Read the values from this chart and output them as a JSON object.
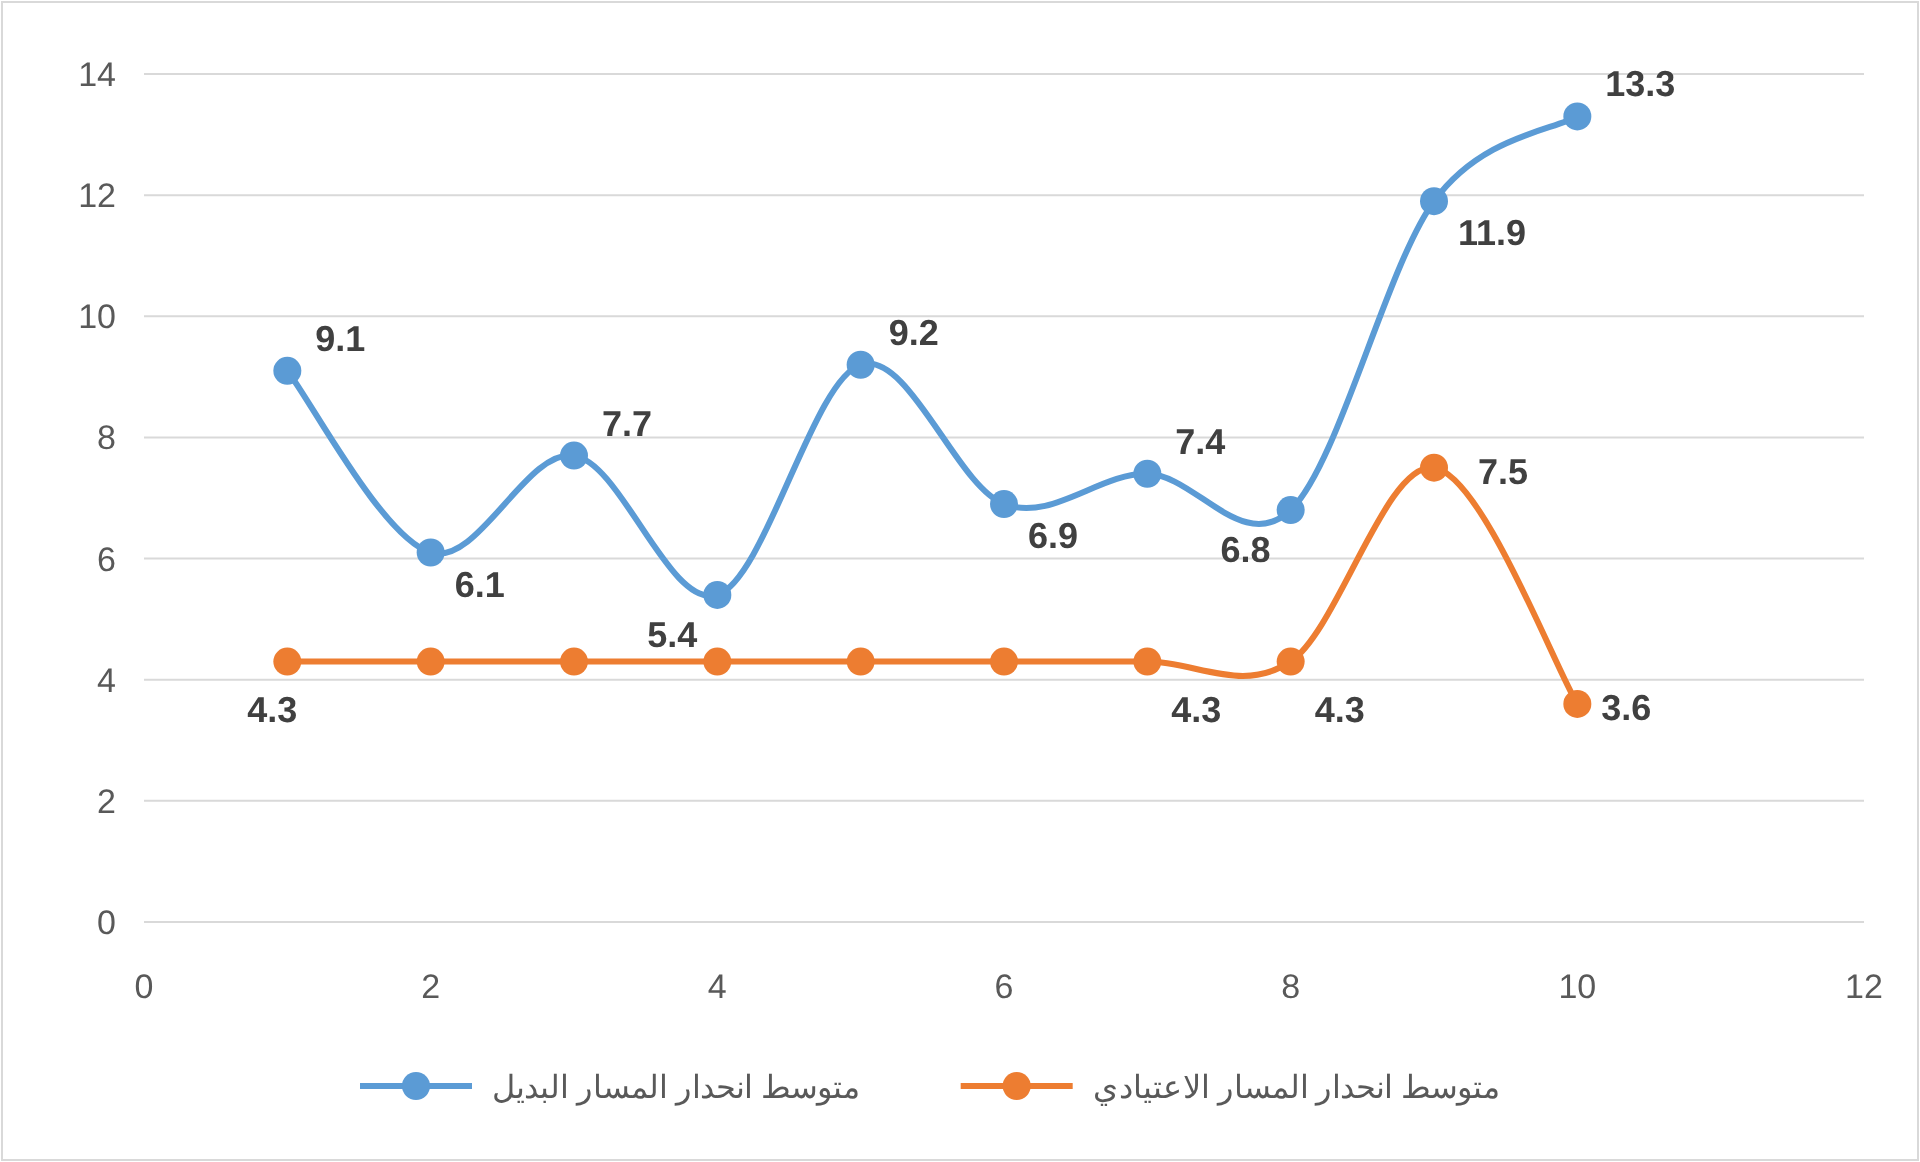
{
  "chart_data": {
    "type": "line",
    "x": [
      1,
      2,
      3,
      4,
      5,
      6,
      7,
      8,
      9,
      10
    ],
    "series": [
      {
        "name": "متوسط انحدار المسار البديل",
        "color": "#5b9bd5",
        "values": [
          9.1,
          6.1,
          7.7,
          5.4,
          9.2,
          6.9,
          7.4,
          6.8,
          11.9,
          13.3
        ],
        "value_labels": [
          "9.1",
          "6.1",
          "7.7",
          "5.4",
          "9.2",
          "6.9",
          "7.4",
          "6.8",
          "11.9",
          "13.3"
        ]
      },
      {
        "name": "متوسط انحدار  المسار الاعتيادي",
        "color": "#ed7d31",
        "values": [
          4.3,
          4.3,
          4.3,
          4.3,
          4.3,
          4.3,
          4.3,
          4.3,
          7.5,
          3.6
        ],
        "value_labels": [
          "4.3",
          null,
          null,
          null,
          null,
          null,
          "4.3",
          "4.3",
          "7.5",
          "3.6"
        ]
      }
    ],
    "xlim": [
      0,
      12
    ],
    "xticks": [
      0,
      2,
      4,
      6,
      8,
      10,
      12
    ],
    "ylim": [
      0,
      14
    ],
    "yticks": [
      0,
      2,
      4,
      6,
      8,
      10,
      12,
      14
    ],
    "grid": "y",
    "legend": "bottom",
    "marker": "circle",
    "line_style": "solid"
  }
}
